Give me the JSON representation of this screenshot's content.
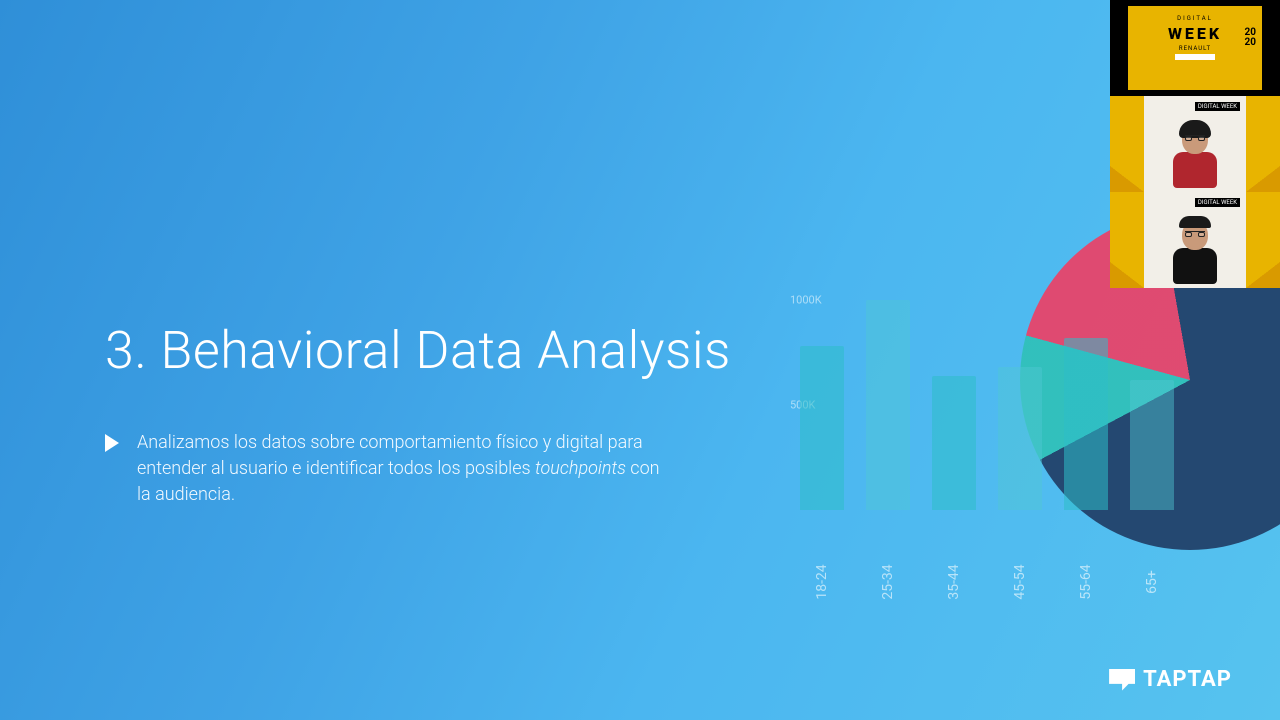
{
  "slide": {
    "heading": "3. Behavioral Data Analysis",
    "bullet_pre": "Analizamos los datos sobre comportamiento físico y digital para entender al usuario e identificar todos los posibles ",
    "bullet_em": "touchpoints",
    "bullet_post": " con la audiencia."
  },
  "chart": {
    "type": "bar",
    "categories": [
      "18-24",
      "25-34",
      "35-44",
      "45-54",
      "55-64",
      "65+"
    ],
    "values": [
      780,
      1000,
      640,
      680,
      820,
      620
    ],
    "ylim": [
      0,
      1000
    ],
    "ylabels": [
      {
        "value": 1000,
        "text": "1000K"
      },
      {
        "value": 500,
        "text": "500K"
      }
    ],
    "bar_color": "rgba(46,190,200,0.55)",
    "bar_color_alt": "rgba(80,200,210,0.45)",
    "label_color": "rgba(255,255,255,0.6)"
  },
  "pie": {
    "slices": [
      {
        "color": "#1f3b63",
        "pct": 70
      },
      {
        "color": "#2fc0b7",
        "pct": 12
      },
      {
        "color": "#ef3e63",
        "pct": 18
      }
    ]
  },
  "logo": {
    "text": "TAPTAP"
  },
  "thumbs": {
    "a": {
      "line1": "DIGITAL",
      "line2": "WEEK",
      "brand": "RENAULT",
      "year_a": "20",
      "year_b": "20"
    },
    "badge": "DIGITAL WEEK"
  }
}
